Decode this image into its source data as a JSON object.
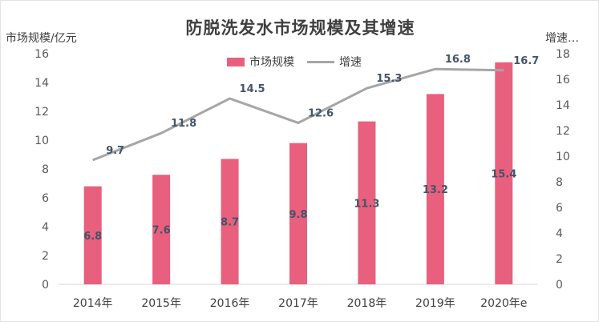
{
  "chart_data": {
    "type": "bar",
    "title": "防脱洗发水市场规模及其增速",
    "categories": [
      "2014年",
      "2015年",
      "2016年",
      "2017年",
      "2018年",
      "2019年",
      "2020年e"
    ],
    "series": [
      {
        "name": "市场规模",
        "type": "bar",
        "axis": "left",
        "color": "#e8607d",
        "values": [
          6.8,
          7.6,
          8.7,
          9.8,
          11.3,
          13.2,
          15.4
        ]
      },
      {
        "name": "增速",
        "type": "line",
        "axis": "right",
        "color": "#a6a6a6",
        "values": [
          9.7,
          11.8,
          14.5,
          12.6,
          15.3,
          16.8,
          16.7
        ]
      }
    ],
    "ylabel": "市场规模/亿元",
    "ylabel_right": "增速…",
    "ylim": [
      0,
      16
    ],
    "ylim_right": [
      0,
      18
    ],
    "yticks": [
      0,
      2,
      4,
      6,
      8,
      10,
      12,
      14,
      16
    ],
    "yticks_right": [
      0,
      2,
      4,
      6,
      8,
      10,
      12,
      14,
      16,
      18
    ],
    "grid": false,
    "legend": "top-center"
  }
}
